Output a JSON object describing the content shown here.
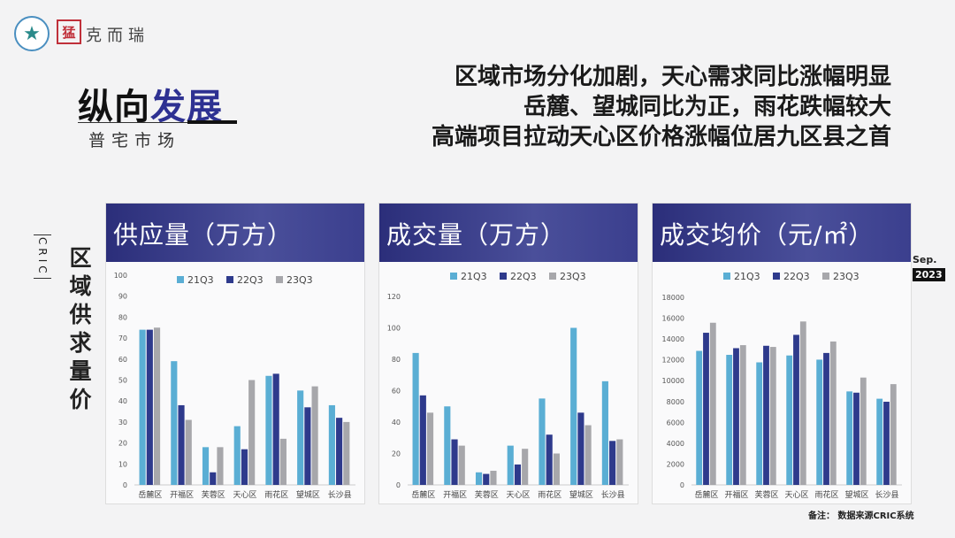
{
  "brand": {
    "seal": "猛",
    "name": "克而瑞"
  },
  "title": {
    "part1": "纵向",
    "part2": "发展",
    "subtitle": "普宅市场"
  },
  "headline": [
    "区域市场分化加剧，天心需求同比涨幅明显",
    "岳麓、望城同比为正，雨花跌幅较大",
    "高端项目拉动天心区价格涨幅位居九区县之首"
  ],
  "side": {
    "cric": "CRIC",
    "title": "区域供求量价"
  },
  "date": {
    "month": "Sep.",
    "year": "2023"
  },
  "note": "备注：  数据来源CRIC系统",
  "colors": {
    "21Q3": "#5aaed4",
    "22Q3": "#2e3a8c",
    "23Q3": "#a7a7ab"
  },
  "chart_data": [
    {
      "type": "bar",
      "title": "供应量（万方）",
      "categories": [
        "岳麓区",
        "开福区",
        "芙蓉区",
        "天心区",
        "雨花区",
        "望城区",
        "长沙县"
      ],
      "ylim": [
        0,
        100
      ],
      "yticks": [
        0,
        10,
        20,
        30,
        40,
        50,
        60,
        70,
        80,
        90,
        100
      ],
      "series": [
        {
          "name": "21Q3",
          "values": [
            74,
            59,
            18,
            28,
            52,
            45,
            38
          ]
        },
        {
          "name": "22Q3",
          "values": [
            74,
            38,
            6,
            17,
            53,
            37,
            32
          ]
        },
        {
          "name": "23Q3",
          "values": [
            75,
            31,
            18,
            50,
            22,
            47,
            30
          ]
        }
      ],
      "legend": "top"
    },
    {
      "type": "bar",
      "title": "成交量（万方）",
      "categories": [
        "岳麓区",
        "开福区",
        "芙蓉区",
        "天心区",
        "雨花区",
        "望城区",
        "长沙县"
      ],
      "ylim": [
        0,
        120
      ],
      "yticks": [
        0,
        20,
        40,
        60,
        80,
        100,
        120
      ],
      "series": [
        {
          "name": "21Q3",
          "values": [
            84,
            50,
            8,
            25,
            55,
            100,
            66
          ]
        },
        {
          "name": "22Q3",
          "values": [
            57,
            29,
            7,
            13,
            32,
            46,
            28
          ]
        },
        {
          "name": "23Q3",
          "values": [
            46,
            25,
            9,
            23,
            20,
            38,
            29
          ]
        }
      ],
      "legend": "top"
    },
    {
      "type": "bar",
      "title": "成交均价（元/㎡）",
      "categories": [
        "岳麓区",
        "开福区",
        "芙蓉区",
        "天心区",
        "雨花区",
        "望城区",
        "长沙县"
      ],
      "ylim": [
        0,
        18000
      ],
      "yticks": [
        0,
        2000,
        4000,
        6000,
        8000,
        10000,
        12000,
        14000,
        16000,
        18000
      ],
      "series": [
        {
          "name": "21Q3",
          "values": [
            12860,
            12480,
            11760,
            12420,
            12020,
            8970,
            8270
          ]
        },
        {
          "name": "22Q3",
          "values": [
            14600,
            13120,
            13350,
            14400,
            12660,
            8850,
            7980
          ]
        },
        {
          "name": "23Q3",
          "values": [
            15560,
            13410,
            13240,
            15680,
            13760,
            10300,
            9670
          ]
        }
      ],
      "legend": "top"
    }
  ]
}
